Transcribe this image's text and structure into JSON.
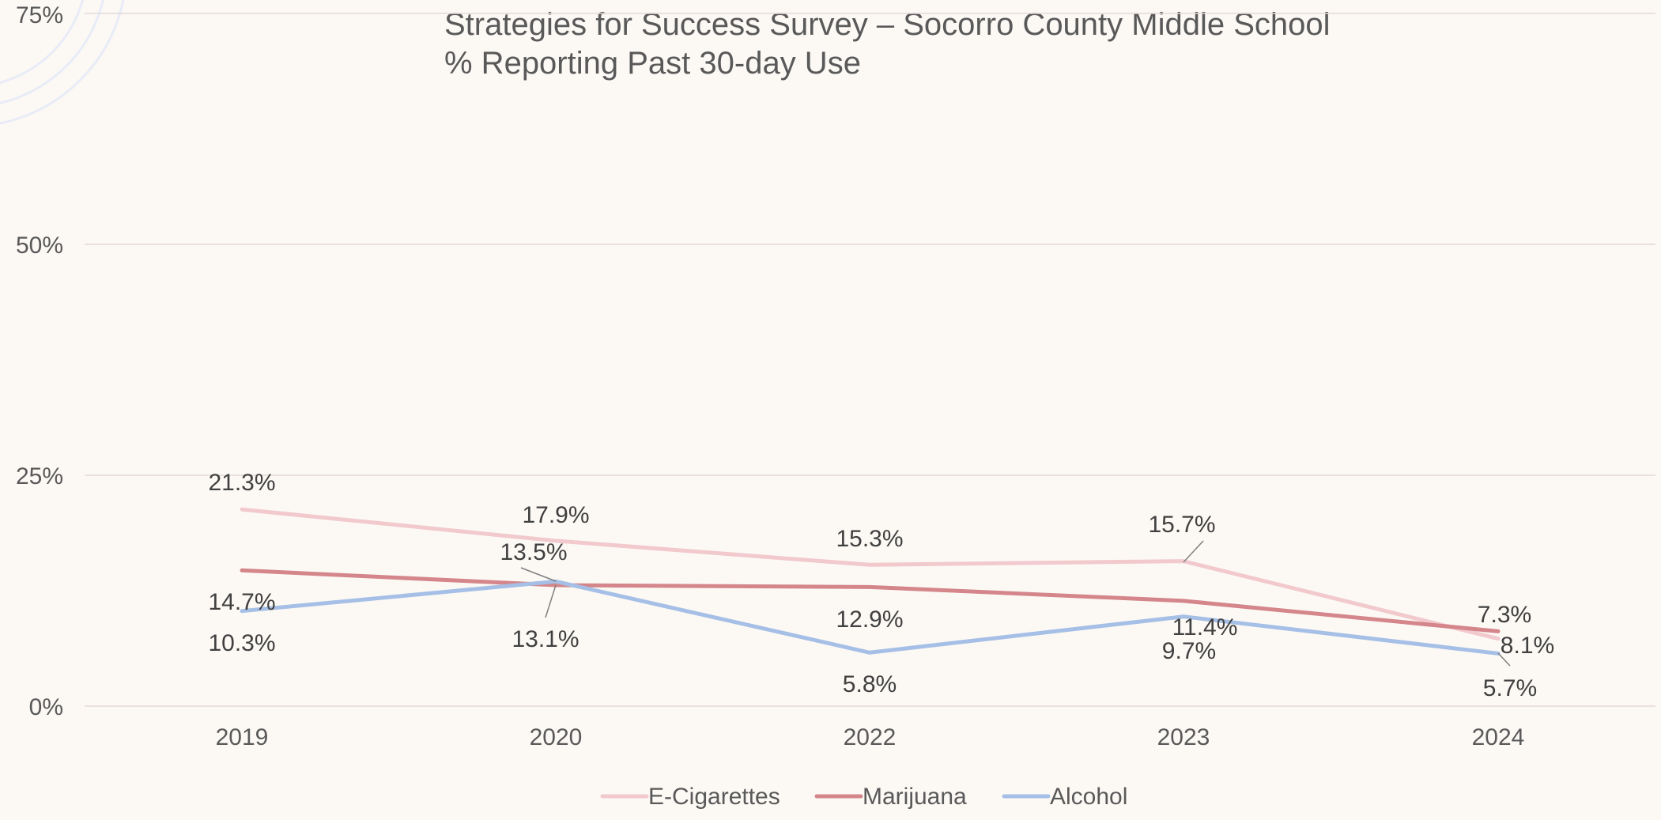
{
  "chart_data": {
    "type": "line",
    "title_lines": [
      "Strategies for Success Survey – Socorro County Middle School",
      "% Reporting Past 30-day Use"
    ],
    "categories": [
      "2019",
      "2020",
      "2022",
      "2023",
      "2024"
    ],
    "y_ticks": [
      "0%",
      "25%",
      "50%",
      "75%"
    ],
    "ylim": [
      0,
      75
    ],
    "grid": true,
    "legend_position": "bottom",
    "series": [
      {
        "name": "E-Cigarettes",
        "color": "#f2c9cd",
        "values": [
          21.3,
          17.9,
          15.3,
          15.7,
          7.3
        ],
        "labels": [
          "21.3%",
          "17.9%",
          "15.3%",
          "15.7%",
          "7.3%"
        ]
      },
      {
        "name": "Marijuana",
        "color": "#d4868a",
        "values": [
          14.7,
          13.1,
          12.9,
          11.4,
          8.1
        ],
        "labels": [
          "14.7%",
          "13.1%",
          "12.9%",
          "11.4%",
          "8.1%"
        ]
      },
      {
        "name": "Alcohol",
        "color": "#a6bfe6",
        "values": [
          10.3,
          13.5,
          5.8,
          9.7,
          5.7
        ],
        "labels": [
          "10.3%",
          "13.5%",
          "5.8%",
          "9.7%",
          "5.7%"
        ]
      }
    ]
  }
}
